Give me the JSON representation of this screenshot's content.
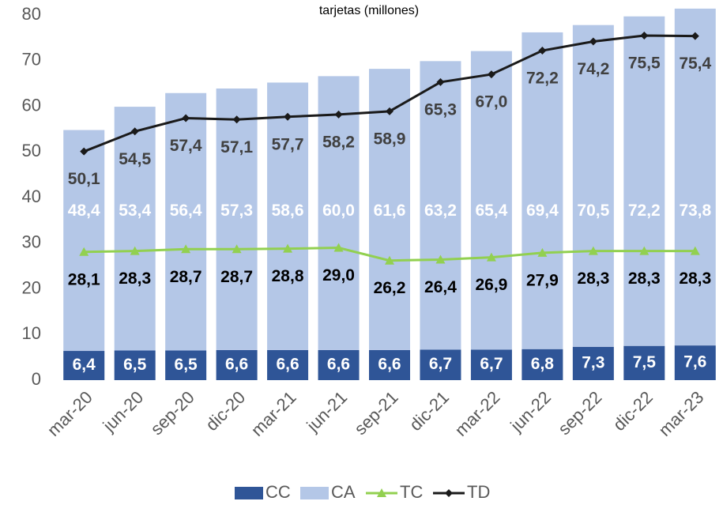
{
  "chart_data": {
    "type": "bar",
    "stacked": true,
    "title": "tarjetas (millones)",
    "categories": [
      "mar-20",
      "jun-20",
      "sep-20",
      "dic-20",
      "mar-21",
      "jun-21",
      "sep-21",
      "dic-21",
      "mar-22",
      "jun-22",
      "sep-22",
      "dic-22",
      "mar-23"
    ],
    "series": [
      {
        "name": "CC",
        "type": "bar",
        "color": "#2f5597",
        "values": [
          6.4,
          6.5,
          6.5,
          6.6,
          6.6,
          6.6,
          6.6,
          6.7,
          6.7,
          6.8,
          7.3,
          7.5,
          7.6
        ],
        "value_labels": [
          "6,4",
          "6,5",
          "6,5",
          "6,6",
          "6,6",
          "6,6",
          "6,6",
          "6,7",
          "6,7",
          "6,8",
          "7,3",
          "7,5",
          "7,6"
        ]
      },
      {
        "name": "CA",
        "type": "bar",
        "color": "#b4c7e7",
        "values": [
          48.4,
          53.4,
          56.4,
          57.3,
          58.6,
          60.0,
          61.6,
          63.2,
          65.4,
          69.4,
          70.5,
          72.2,
          73.8
        ],
        "value_labels": [
          "48,4",
          "53,4",
          "56,4",
          "57,3",
          "58,6",
          "60,0",
          "61,6",
          "63,2",
          "65,4",
          "69,4",
          "70,5",
          "72,2",
          "73,8"
        ]
      },
      {
        "name": "TC",
        "type": "line",
        "marker": "triangle",
        "color": "#92d050",
        "values": [
          28.1,
          28.3,
          28.7,
          28.7,
          28.8,
          29.0,
          26.2,
          26.4,
          26.9,
          27.9,
          28.3,
          28.3,
          28.3
        ],
        "value_labels": [
          "28,1",
          "28,3",
          "28,7",
          "28,7",
          "28,8",
          "29,0",
          "26,2",
          "26,4",
          "26,9",
          "27,9",
          "28,3",
          "28,3",
          "28,3"
        ]
      },
      {
        "name": "TD",
        "type": "line",
        "marker": "diamond",
        "color": "#1a1a1a",
        "values": [
          50.1,
          54.5,
          57.4,
          57.1,
          57.7,
          58.2,
          58.9,
          65.3,
          67.0,
          72.2,
          74.2,
          75.5,
          75.4
        ],
        "value_labels": [
          "50,1",
          "54,5",
          "57,4",
          "57,1",
          "57,7",
          "58,2",
          "58,9",
          "65,3",
          "67,0",
          "72,2",
          "74,2",
          "75,5",
          "75,4"
        ]
      }
    ],
    "ylim": [
      0,
      80
    ],
    "yticks": [
      0,
      10,
      20,
      30,
      40,
      50,
      60,
      70,
      80
    ],
    "grid": false,
    "legend": "bottom"
  }
}
